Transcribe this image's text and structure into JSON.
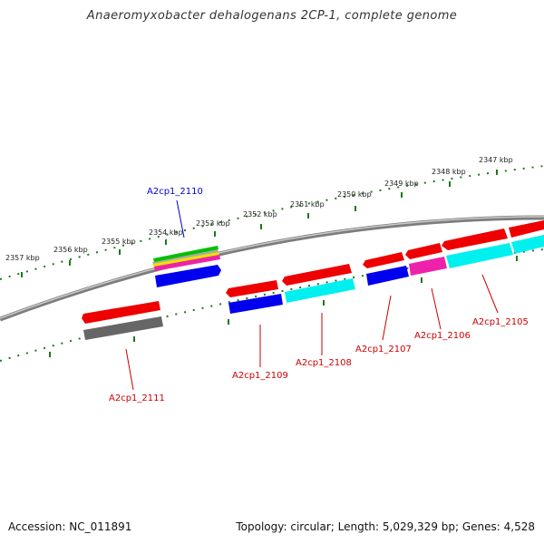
{
  "header": {
    "title": "Anaeromyxobacter dehalogenans 2CP-1, complete genome"
  },
  "footer": {
    "accession": "Accession: NC_011891",
    "summary": "Topology: circular; Length: 5,029,329 bp; Genes: 4,528"
  },
  "ruler": {
    "ticks": [
      "2357 kbp",
      "2356 kbp",
      "2355 kbp",
      "2354 kbp",
      "2353 kbp",
      "2352 kbp",
      "2351 kbp",
      "2350 kbp",
      "2349 kbp",
      "2348 kbp",
      "2347 kbp"
    ]
  },
  "genes": [
    {
      "id": "A2cp1_2110",
      "strand": "plus",
      "color": "#0000cc"
    },
    {
      "id": "A2cp1_2111",
      "strand": "plus",
      "color": "#cc0000"
    },
    {
      "id": "A2cp1_2109",
      "strand": "minus",
      "color": "#cc0000"
    },
    {
      "id": "A2cp1_2108",
      "strand": "minus",
      "color": "#cc0000"
    },
    {
      "id": "A2cp1_2107",
      "strand": "minus",
      "color": "#cc0000"
    },
    {
      "id": "A2cp1_2106",
      "strand": "minus",
      "color": "#cc0000"
    },
    {
      "id": "A2cp1_2105",
      "strand": "minus",
      "color": "#cc0000"
    }
  ],
  "colors": {
    "backbone": "#8a8a8a",
    "tick": "#1a7a1a",
    "cds": "#ff0000",
    "cog_blue": "#0000ee",
    "cog_cyan": "#00f0f0",
    "cog_magenta": "#ee22aa",
    "cog_gray": "#666666"
  }
}
